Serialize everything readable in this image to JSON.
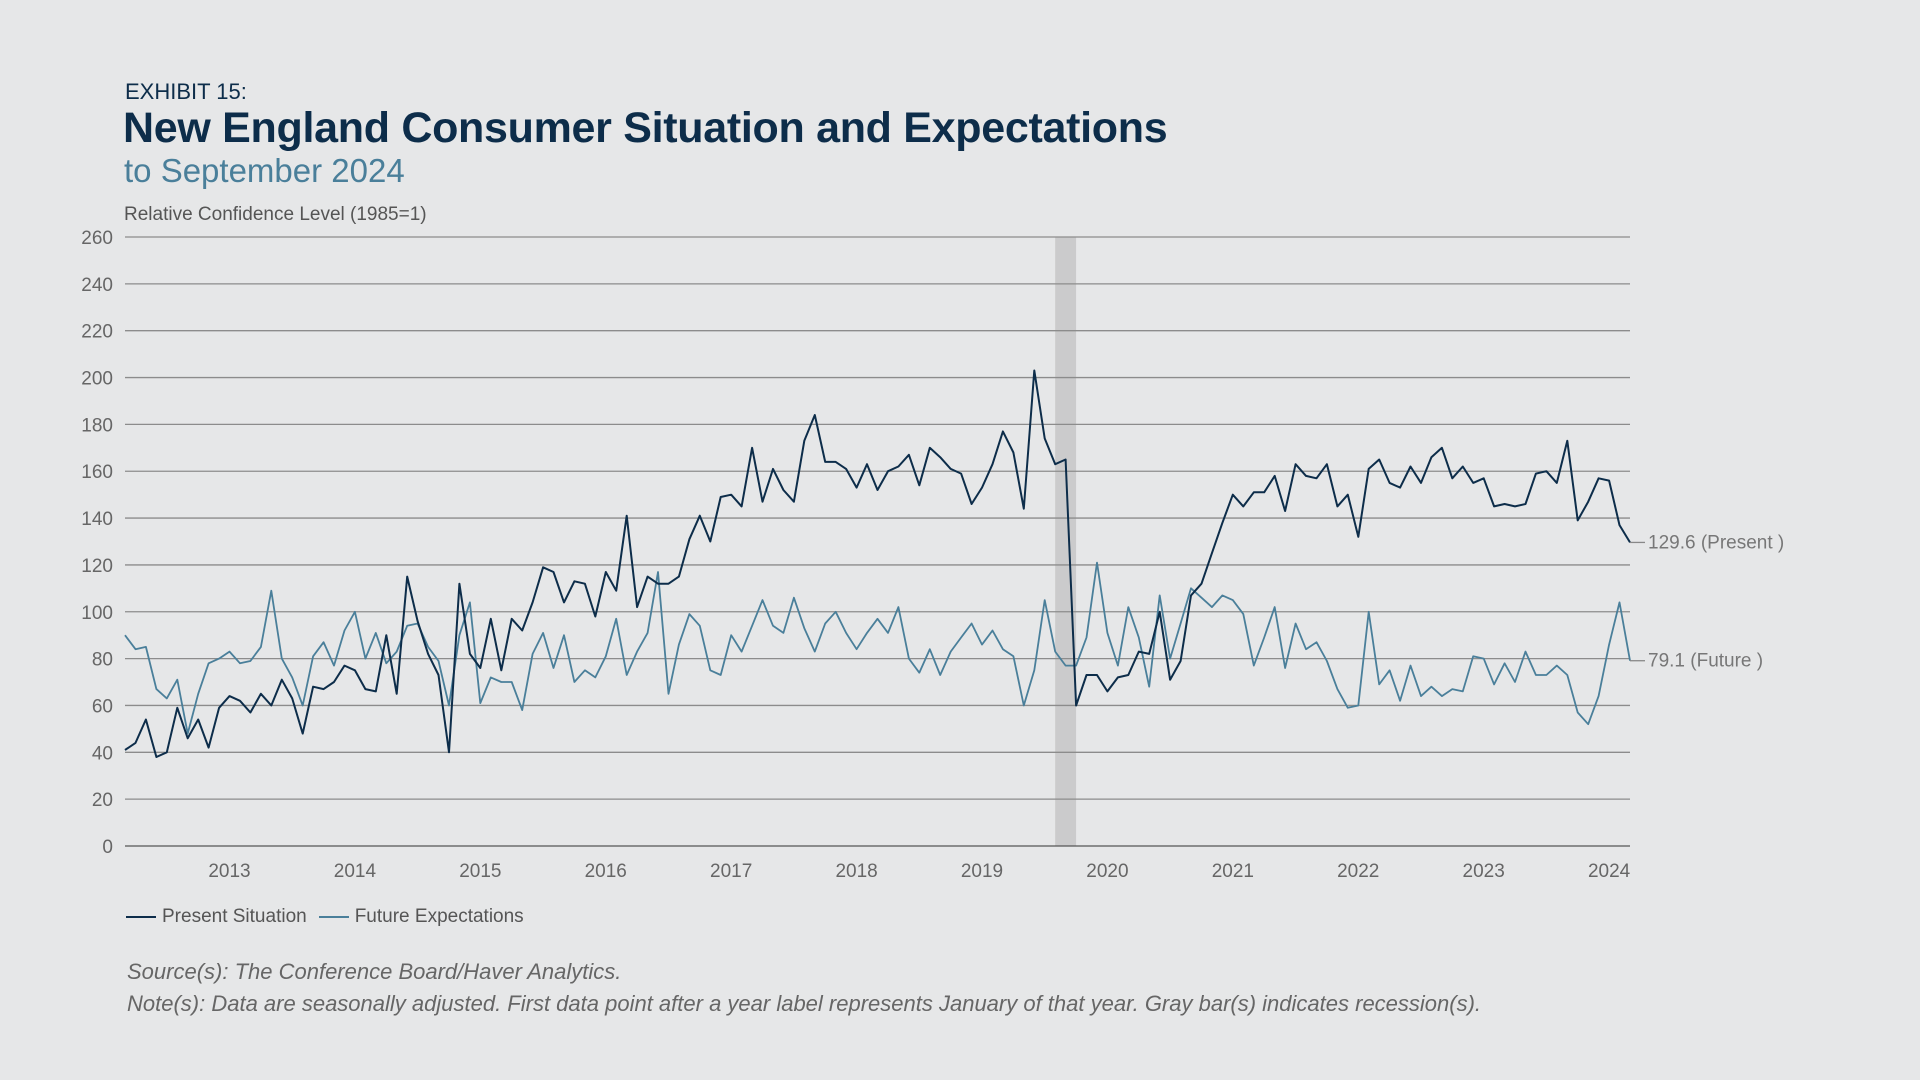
{
  "header": {
    "exhibit": "EXHIBIT 15:",
    "title": "New England Consumer Situation and Expectations",
    "subtitle": "to September 2024"
  },
  "footer": {
    "source": "Source(s): The Conference Board/Haver Analytics.",
    "note": "Note(s): Data are seasonally adjusted. First data point after a year label represents January of that year. Gray bar(s) indicates recession(s)."
  },
  "colors": {
    "present": "#0d2d4a",
    "future": "#4a7f9a",
    "recession": "#cbcbcc",
    "grid": "#8c8c8c"
  },
  "chart_data": {
    "type": "line",
    "title": "New England Consumer Situation and Expectations",
    "ylabel": "Relative Confidence Level (1985=1)",
    "ylim": [
      0,
      260
    ],
    "yticks": [
      0,
      20,
      40,
      60,
      80,
      100,
      120,
      140,
      160,
      180,
      200,
      220,
      240,
      260
    ],
    "xrange": [
      "2012-09",
      "2024-09"
    ],
    "xticks": [
      "2013",
      "2014",
      "2015",
      "2016",
      "2017",
      "2018",
      "2019",
      "2020",
      "2021",
      "2022",
      "2023",
      "2024"
    ],
    "grid": true,
    "legend_position": "bottom-left",
    "recessions": [
      {
        "start": "2020-02",
        "end": "2020-04"
      }
    ],
    "end_labels": [
      "129.6 (Present )",
      "79.1 (Future )"
    ],
    "series": [
      {
        "name": "Present Situation",
        "start": "2012-09",
        "values": [
          41,
          44,
          54,
          38,
          40,
          59,
          46,
          54,
          42,
          59,
          64,
          62,
          57,
          65,
          60,
          71,
          63,
          48,
          68,
          67,
          70,
          77,
          75,
          67,
          66,
          90,
          65,
          115,
          96,
          82,
          73,
          40,
          112,
          82,
          76,
          97,
          75,
          97,
          92,
          104,
          119,
          117,
          104,
          113,
          112,
          98,
          117,
          109,
          141,
          102,
          115,
          112,
          112,
          115,
          131,
          141,
          130,
          149,
          150,
          145,
          170,
          147,
          161,
          152,
          147,
          173,
          184,
          164,
          164,
          161,
          153,
          163,
          152,
          160,
          162,
          167,
          154,
          170,
          166,
          161,
          159,
          146,
          153,
          163,
          177,
          168,
          144,
          203,
          174,
          163,
          165,
          60,
          73,
          73,
          66,
          72,
          73,
          83,
          82,
          100,
          71,
          79,
          107,
          112,
          125,
          138,
          150,
          145,
          151,
          151,
          158,
          143,
          163,
          158,
          157,
          163,
          145,
          150,
          132,
          161,
          165,
          155,
          153,
          162,
          155,
          166,
          170,
          157,
          162,
          155,
          157,
          145,
          146,
          145,
          146,
          159,
          160,
          155,
          173,
          139,
          147,
          157,
          156,
          137,
          129.6
        ]
      },
      {
        "name": "Future Expectations",
        "start": "2012-09",
        "values": [
          90,
          84,
          85,
          67,
          63,
          71,
          48,
          65,
          78,
          80,
          83,
          78,
          79,
          85,
          109,
          80,
          72,
          60,
          81,
          87,
          77,
          92,
          100,
          80,
          91,
          78,
          83,
          94,
          95,
          85,
          79,
          60,
          90,
          104,
          61,
          72,
          70,
          70,
          58,
          82,
          91,
          76,
          90,
          70,
          75,
          72,
          81,
          97,
          73,
          83,
          91,
          117,
          65,
          86,
          99,
          94,
          75,
          73,
          90,
          83,
          94,
          105,
          94,
          91,
          106,
          93,
          83,
          95,
          100,
          91,
          84,
          91,
          97,
          91,
          102,
          80,
          74,
          84,
          73,
          83,
          89,
          95,
          86,
          92,
          84,
          81,
          60,
          75,
          105,
          83,
          77,
          77,
          89,
          121,
          91,
          77,
          102,
          89,
          68,
          107,
          80,
          95,
          110,
          106,
          102,
          107,
          105,
          99,
          77,
          89,
          102,
          76,
          95,
          84,
          87,
          79,
          67,
          59,
          60,
          100,
          69,
          75,
          62,
          77,
          64,
          68,
          64,
          67,
          66,
          81,
          80,
          69,
          78,
          70,
          83,
          73,
          73,
          77,
          73,
          57,
          52,
          64,
          86,
          104,
          79.1
        ]
      }
    ]
  }
}
